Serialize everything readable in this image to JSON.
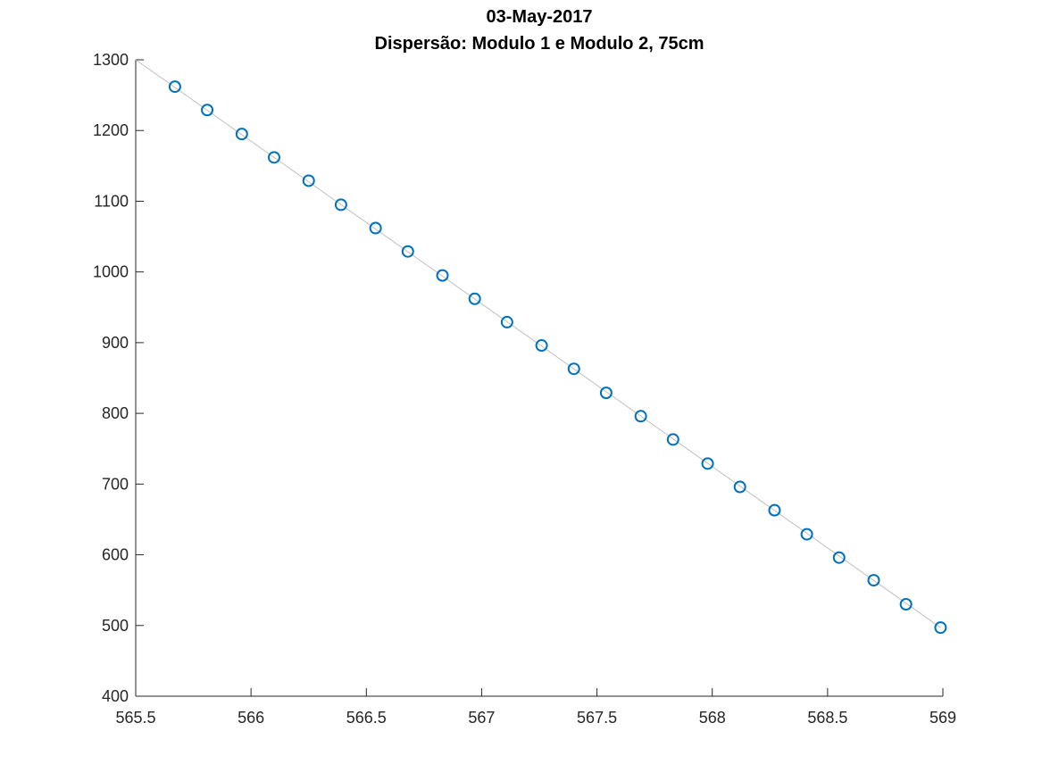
{
  "chart_data": {
    "type": "scatter",
    "title": [
      "03-May-2017",
      "Dispersão: Modulo 1 e Modulo 2, 75cm"
    ],
    "xlabel": "",
    "ylabel": "",
    "xlim": [
      565.5,
      569
    ],
    "ylim": [
      400,
      1300
    ],
    "xticks": [
      565.5,
      566,
      566.5,
      567,
      567.5,
      568,
      568.5,
      569
    ],
    "xtick_labels": [
      "565.5",
      "566",
      "566.5",
      "567",
      "567.5",
      "568",
      "568.5",
      "569"
    ],
    "yticks": [
      400,
      500,
      600,
      700,
      800,
      900,
      1000,
      1100,
      1200,
      1300
    ],
    "ytick_labels": [
      "400",
      "500",
      "600",
      "700",
      "800",
      "900",
      "1000",
      "1100",
      "1200",
      "1300"
    ],
    "grid": false,
    "series": [
      {
        "marker": "circle",
        "color": "#0072BD",
        "x": [
          565.67,
          565.81,
          565.96,
          566.1,
          566.25,
          566.39,
          566.54,
          566.68,
          566.83,
          566.97,
          567.11,
          567.26,
          567.4,
          567.54,
          567.69,
          567.83,
          567.98,
          568.12,
          568.27,
          568.41,
          568.55,
          568.7,
          568.84,
          568.99
        ],
        "y": [
          1262,
          1229,
          1195,
          1162,
          1129,
          1095,
          1062,
          1029,
          995,
          962,
          929,
          896,
          863,
          829,
          796,
          763,
          729,
          696,
          663,
          629,
          596,
          564,
          530,
          497
        ]
      }
    ],
    "fit_line": {
      "color": "#bfbfbf",
      "x": [
        565.5,
        568.99
      ],
      "y": [
        1300,
        497
      ]
    }
  }
}
